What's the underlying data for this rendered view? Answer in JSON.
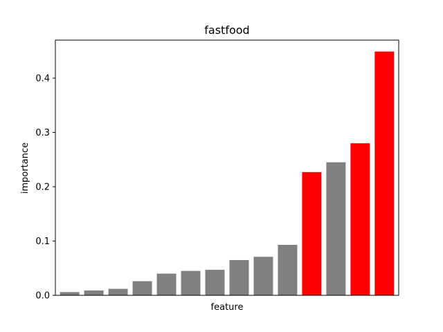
{
  "chart_data": {
    "type": "bar",
    "title": "fastfood",
    "xlabel": "feature",
    "ylabel": "importance",
    "ylim": [
      0,
      0.47
    ],
    "yticks": [
      0.0,
      0.1,
      0.2,
      0.3,
      0.4
    ],
    "ytick_labels": [
      "0.0",
      "0.1",
      "0.2",
      "0.3",
      "0.4"
    ],
    "grid": false,
    "values": [
      0.006,
      0.009,
      0.012,
      0.026,
      0.04,
      0.045,
      0.047,
      0.065,
      0.071,
      0.093,
      0.227,
      0.245,
      0.28,
      0.449
    ],
    "highlight": [
      false,
      false,
      false,
      false,
      false,
      false,
      false,
      false,
      false,
      false,
      true,
      false,
      true,
      true
    ],
    "colors": {
      "default": "#808080",
      "highlight": "#ff0000"
    }
  }
}
